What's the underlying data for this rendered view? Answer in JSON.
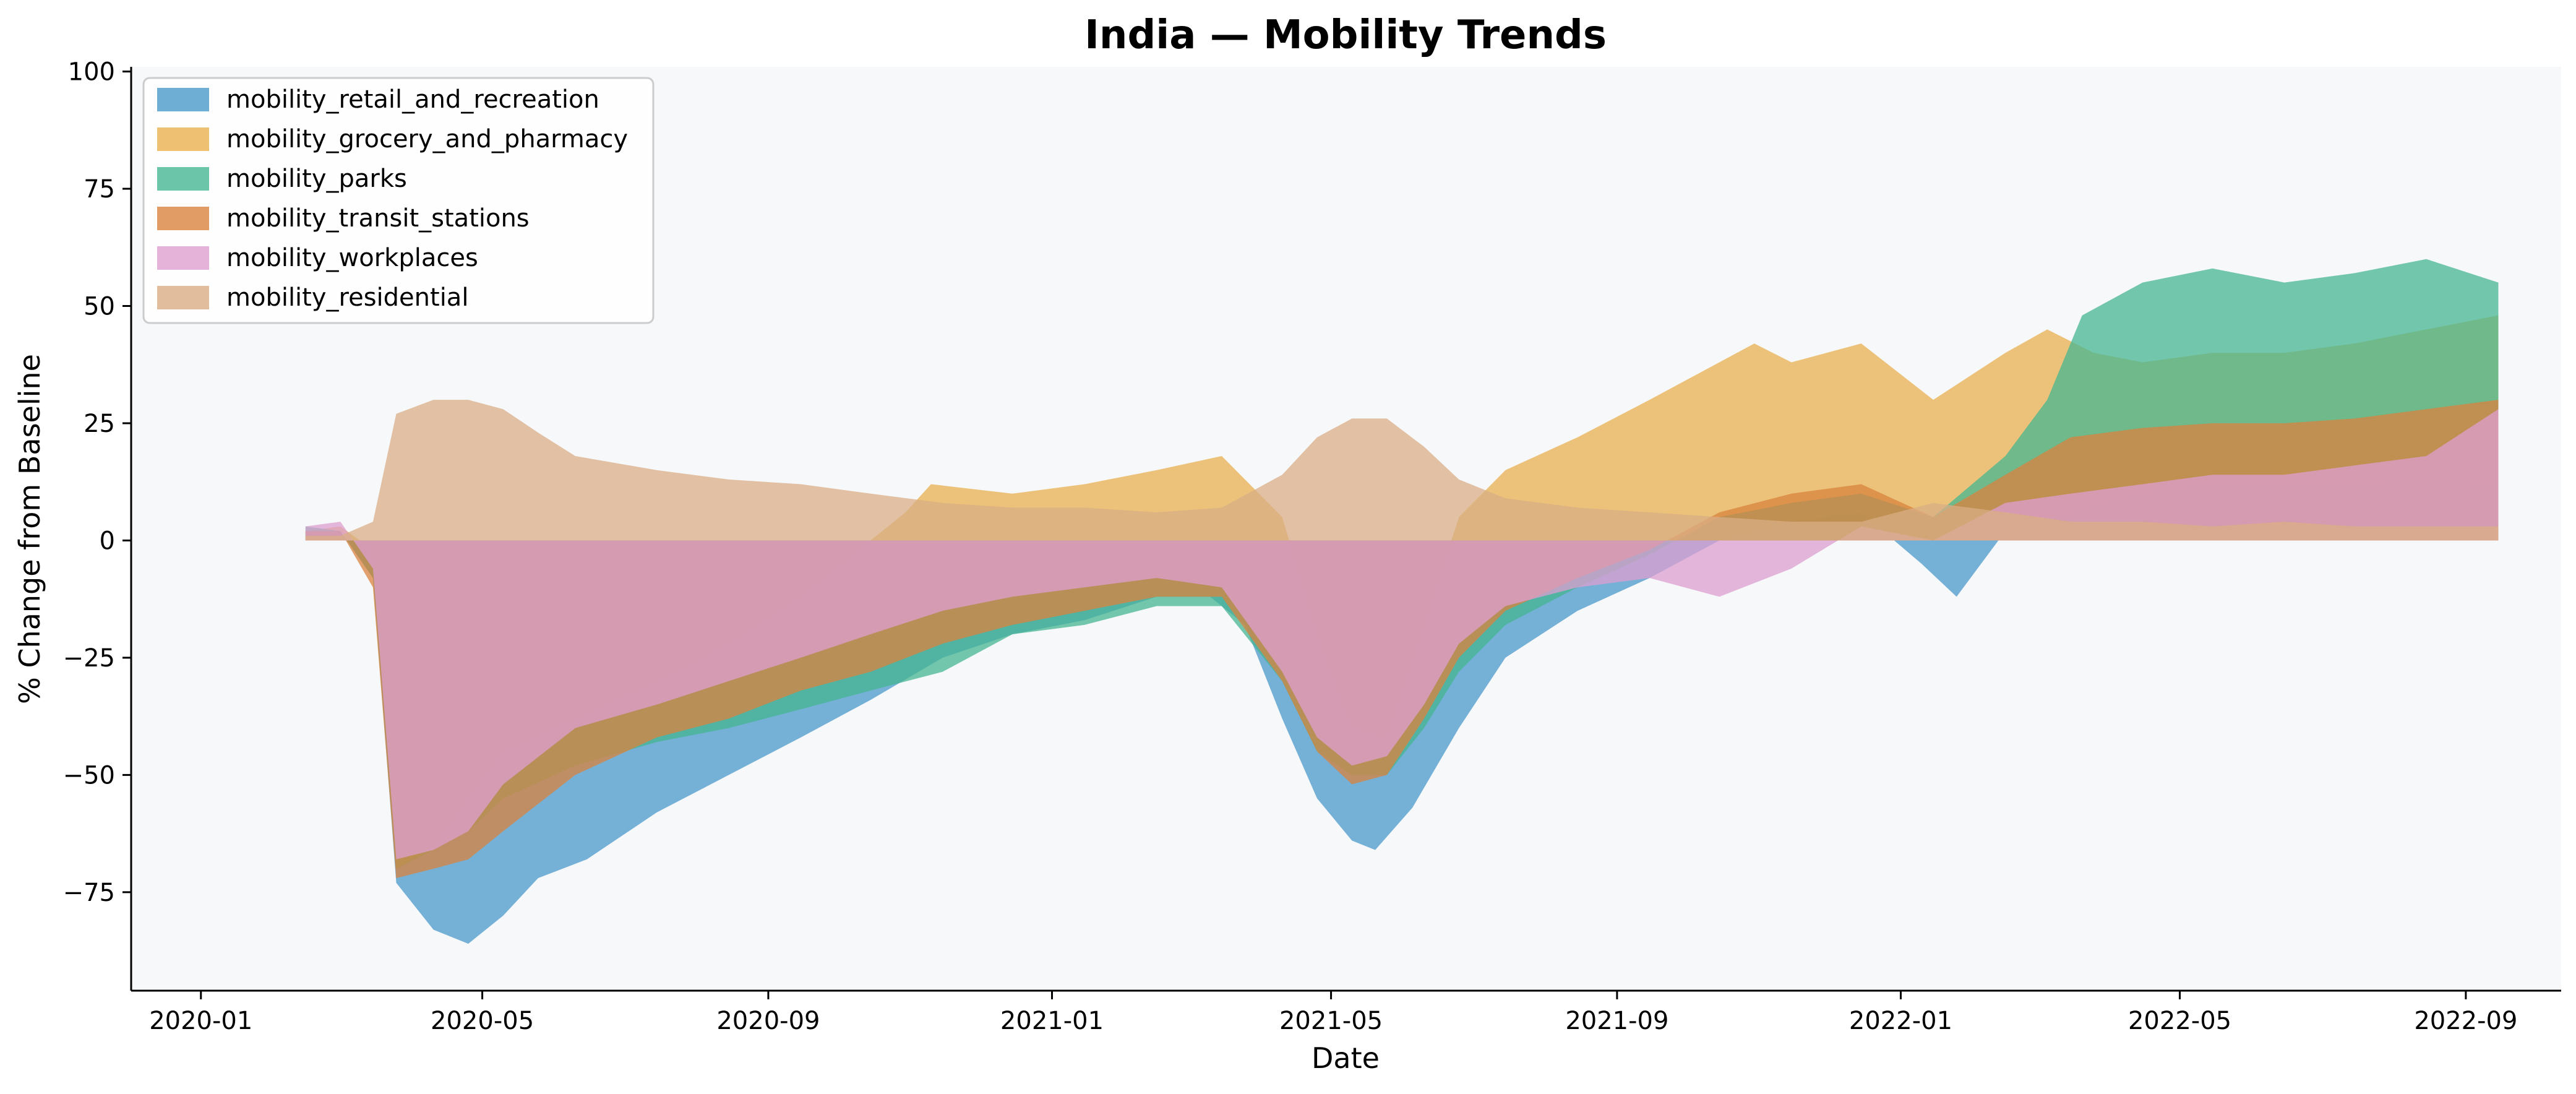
{
  "chart_data": {
    "type": "area",
    "title": "India — Mobility Trends",
    "xlabel": "Date",
    "ylabel": "% Change from Baseline",
    "xlim": [
      "2019-12-02",
      "2022-10-12"
    ],
    "ylim": [
      -96,
      101
    ],
    "x_ticks": [
      "2020-01",
      "2020-05",
      "2020-09",
      "2021-01",
      "2021-05",
      "2021-09",
      "2022-01",
      "2022-05",
      "2022-09"
    ],
    "y_ticks": [
      -75,
      -50,
      -25,
      0,
      25,
      50,
      75,
      100
    ],
    "y_tick_labels": [
      "−75",
      "−50",
      "−25",
      "0",
      "25",
      "50",
      "75",
      "100"
    ],
    "grid": false,
    "legend_position": "top-left",
    "background": "#f7f8fa",
    "series": [
      {
        "name": "mobility_retail_and_recreation",
        "color": "#4a9ac9",
        "points": [
          [
            "2020-02-15",
            2
          ],
          [
            "2020-03-01",
            2
          ],
          [
            "2020-03-15",
            -8
          ],
          [
            "2020-03-25",
            -73
          ],
          [
            "2020-04-10",
            -83
          ],
          [
            "2020-04-25",
            -86
          ],
          [
            "2020-05-10",
            -80
          ],
          [
            "2020-05-25",
            -72
          ],
          [
            "2020-06-15",
            -68
          ],
          [
            "2020-07-15",
            -58
          ],
          [
            "2020-08-15",
            -50
          ],
          [
            "2020-09-15",
            -42
          ],
          [
            "2020-10-15",
            -34
          ],
          [
            "2020-11-15",
            -25
          ],
          [
            "2020-12-15",
            -20
          ],
          [
            "2021-01-15",
            -17
          ],
          [
            "2021-02-15",
            -12
          ],
          [
            "2021-03-10",
            -12
          ],
          [
            "2021-03-25",
            -18
          ],
          [
            "2021-04-10",
            -38
          ],
          [
            "2021-04-25",
            -55
          ],
          [
            "2021-05-10",
            -64
          ],
          [
            "2021-05-20",
            -66
          ],
          [
            "2021-06-05",
            -57
          ],
          [
            "2021-06-25",
            -40
          ],
          [
            "2021-07-15",
            -25
          ],
          [
            "2021-08-15",
            -15
          ],
          [
            "2021-09-15",
            -8
          ],
          [
            "2021-10-15",
            0
          ],
          [
            "2021-11-15",
            4
          ],
          [
            "2021-12-15",
            6
          ],
          [
            "2022-01-10",
            -5
          ],
          [
            "2022-01-25",
            -12
          ],
          [
            "2022-02-15",
            2
          ],
          [
            "2022-03-15",
            6
          ],
          [
            "2022-04-15",
            10
          ],
          [
            "2022-05-15",
            12
          ],
          [
            "2022-06-15",
            12
          ],
          [
            "2022-07-15",
            12
          ],
          [
            "2022-08-15",
            13
          ],
          [
            "2022-09-15",
            12
          ]
        ]
      },
      {
        "name": "mobility_grocery_and_pharmacy",
        "color": "#e8b04f",
        "points": [
          [
            "2020-02-15",
            2
          ],
          [
            "2020-03-01",
            3
          ],
          [
            "2020-03-15",
            -2
          ],
          [
            "2020-03-25",
            -70
          ],
          [
            "2020-04-10",
            -65
          ],
          [
            "2020-04-25",
            -55
          ],
          [
            "2020-05-10",
            -45
          ],
          [
            "2020-06-10",
            -38
          ],
          [
            "2020-07-15",
            -30
          ],
          [
            "2020-08-15",
            -22
          ],
          [
            "2020-09-15",
            -12
          ],
          [
            "2020-10-15",
            0
          ],
          [
            "2020-10-30",
            6
          ],
          [
            "2020-11-10",
            12
          ],
          [
            "2020-12-15",
            10
          ],
          [
            "2021-01-15",
            12
          ],
          [
            "2021-02-15",
            15
          ],
          [
            "2021-03-15",
            18
          ],
          [
            "2021-04-10",
            5
          ],
          [
            "2021-04-25",
            -20
          ],
          [
            "2021-05-10",
            -40
          ],
          [
            "2021-05-25",
            -42
          ],
          [
            "2021-06-10",
            -18
          ],
          [
            "2021-06-25",
            5
          ],
          [
            "2021-07-15",
            15
          ],
          [
            "2021-08-15",
            22
          ],
          [
            "2021-09-15",
            30
          ],
          [
            "2021-10-15",
            38
          ],
          [
            "2021-10-30",
            42
          ],
          [
            "2021-11-15",
            38
          ],
          [
            "2021-12-15",
            42
          ],
          [
            "2022-01-15",
            30
          ],
          [
            "2022-02-15",
            40
          ],
          [
            "2022-03-05",
            45
          ],
          [
            "2022-03-25",
            40
          ],
          [
            "2022-04-15",
            38
          ],
          [
            "2022-05-15",
            40
          ],
          [
            "2022-06-15",
            40
          ],
          [
            "2022-07-15",
            42
          ],
          [
            "2022-08-15",
            45
          ],
          [
            "2022-09-15",
            48
          ]
        ]
      },
      {
        "name": "mobility_parks",
        "color": "#46b692",
        "points": [
          [
            "2020-02-15",
            3
          ],
          [
            "2020-03-01",
            2
          ],
          [
            "2020-03-15",
            -8
          ],
          [
            "2020-03-25",
            -70
          ],
          [
            "2020-04-10",
            -66
          ],
          [
            "2020-04-25",
            -62
          ],
          [
            "2020-05-10",
            -55
          ],
          [
            "2020-06-10",
            -48
          ],
          [
            "2020-07-15",
            -43
          ],
          [
            "2020-08-15",
            -40
          ],
          [
            "2020-09-15",
            -36
          ],
          [
            "2020-10-15",
            -32
          ],
          [
            "2020-11-15",
            -28
          ],
          [
            "2020-12-15",
            -20
          ],
          [
            "2021-01-15",
            -18
          ],
          [
            "2021-02-15",
            -14
          ],
          [
            "2021-03-15",
            -14
          ],
          [
            "2021-04-10",
            -30
          ],
          [
            "2021-04-25",
            -45
          ],
          [
            "2021-05-10",
            -50
          ],
          [
            "2021-05-25",
            -50
          ],
          [
            "2021-06-10",
            -40
          ],
          [
            "2021-06-25",
            -28
          ],
          [
            "2021-07-15",
            -18
          ],
          [
            "2021-08-15",
            -10
          ],
          [
            "2021-09-15",
            -3
          ],
          [
            "2021-10-15",
            5
          ],
          [
            "2021-11-15",
            8
          ],
          [
            "2021-12-15",
            10
          ],
          [
            "2022-01-15",
            5
          ],
          [
            "2022-02-15",
            18
          ],
          [
            "2022-03-05",
            30
          ],
          [
            "2022-03-20",
            48
          ],
          [
            "2022-04-15",
            55
          ],
          [
            "2022-05-15",
            58
          ],
          [
            "2022-06-15",
            55
          ],
          [
            "2022-07-15",
            57
          ],
          [
            "2022-08-15",
            60
          ],
          [
            "2022-09-15",
            55
          ]
        ]
      },
      {
        "name": "mobility_transit_stations",
        "color": "#d9833e",
        "points": [
          [
            "2020-02-15",
            2
          ],
          [
            "2020-03-01",
            2
          ],
          [
            "2020-03-15",
            -10
          ],
          [
            "2020-03-25",
            -72
          ],
          [
            "2020-04-10",
            -70
          ],
          [
            "2020-04-25",
            -68
          ],
          [
            "2020-05-10",
            -62
          ],
          [
            "2020-06-10",
            -50
          ],
          [
            "2020-07-15",
            -42
          ],
          [
            "2020-08-15",
            -38
          ],
          [
            "2020-09-15",
            -32
          ],
          [
            "2020-10-15",
            -28
          ],
          [
            "2020-11-15",
            -22
          ],
          [
            "2020-12-15",
            -18
          ],
          [
            "2021-01-15",
            -15
          ],
          [
            "2021-02-15",
            -12
          ],
          [
            "2021-03-15",
            -12
          ],
          [
            "2021-04-10",
            -30
          ],
          [
            "2021-04-25",
            -45
          ],
          [
            "2021-05-10",
            -52
          ],
          [
            "2021-05-25",
            -50
          ],
          [
            "2021-06-10",
            -38
          ],
          [
            "2021-06-25",
            -25
          ],
          [
            "2021-07-15",
            -15
          ],
          [
            "2021-08-15",
            -8
          ],
          [
            "2021-09-15",
            -2
          ],
          [
            "2021-10-15",
            6
          ],
          [
            "2021-11-15",
            10
          ],
          [
            "2021-12-15",
            12
          ],
          [
            "2022-01-15",
            5
          ],
          [
            "2022-02-15",
            14
          ],
          [
            "2022-03-15",
            22
          ],
          [
            "2022-04-15",
            24
          ],
          [
            "2022-05-15",
            25
          ],
          [
            "2022-06-15",
            25
          ],
          [
            "2022-07-15",
            26
          ],
          [
            "2022-08-15",
            28
          ],
          [
            "2022-09-15",
            30
          ]
        ]
      },
      {
        "name": "mobility_workplaces",
        "color": "#de9fd0",
        "points": [
          [
            "2020-02-15",
            3
          ],
          [
            "2020-03-01",
            4
          ],
          [
            "2020-03-15",
            -6
          ],
          [
            "2020-03-25",
            -68
          ],
          [
            "2020-04-10",
            -66
          ],
          [
            "2020-04-25",
            -62
          ],
          [
            "2020-05-10",
            -52
          ],
          [
            "2020-06-10",
            -40
          ],
          [
            "2020-07-15",
            -35
          ],
          [
            "2020-08-15",
            -30
          ],
          [
            "2020-09-15",
            -25
          ],
          [
            "2020-10-15",
            -20
          ],
          [
            "2020-11-15",
            -15
          ],
          [
            "2020-12-15",
            -12
          ],
          [
            "2021-01-15",
            -10
          ],
          [
            "2021-02-15",
            -8
          ],
          [
            "2021-03-15",
            -10
          ],
          [
            "2021-04-10",
            -28
          ],
          [
            "2021-04-25",
            -42
          ],
          [
            "2021-05-10",
            -48
          ],
          [
            "2021-05-25",
            -46
          ],
          [
            "2021-06-10",
            -35
          ],
          [
            "2021-06-25",
            -22
          ],
          [
            "2021-07-15",
            -14
          ],
          [
            "2021-08-15",
            -10
          ],
          [
            "2021-09-15",
            -8
          ],
          [
            "2021-10-15",
            -12
          ],
          [
            "2021-11-15",
            -6
          ],
          [
            "2021-12-15",
            3
          ],
          [
            "2022-01-15",
            0
          ],
          [
            "2022-02-15",
            8
          ],
          [
            "2022-03-15",
            10
          ],
          [
            "2022-04-15",
            12
          ],
          [
            "2022-05-15",
            14
          ],
          [
            "2022-06-15",
            14
          ],
          [
            "2022-07-15",
            16
          ],
          [
            "2022-08-15",
            18
          ],
          [
            "2022-09-15",
            28
          ]
        ]
      },
      {
        "name": "mobility_residential",
        "color": "#d9ad86",
        "points": [
          [
            "2020-02-15",
            1
          ],
          [
            "2020-03-01",
            1
          ],
          [
            "2020-03-15",
            4
          ],
          [
            "2020-03-25",
            27
          ],
          [
            "2020-04-10",
            30
          ],
          [
            "2020-04-25",
            30
          ],
          [
            "2020-05-10",
            28
          ],
          [
            "2020-05-25",
            23
          ],
          [
            "2020-06-10",
            18
          ],
          [
            "2020-07-15",
            15
          ],
          [
            "2020-08-15",
            13
          ],
          [
            "2020-09-15",
            12
          ],
          [
            "2020-10-15",
            10
          ],
          [
            "2020-11-15",
            8
          ],
          [
            "2020-12-15",
            7
          ],
          [
            "2021-01-15",
            7
          ],
          [
            "2021-02-15",
            6
          ],
          [
            "2021-03-15",
            7
          ],
          [
            "2021-04-10",
            14
          ],
          [
            "2021-04-25",
            22
          ],
          [
            "2021-05-10",
            26
          ],
          [
            "2021-05-25",
            26
          ],
          [
            "2021-06-10",
            20
          ],
          [
            "2021-06-25",
            13
          ],
          [
            "2021-07-15",
            9
          ],
          [
            "2021-08-15",
            7
          ],
          [
            "2021-09-15",
            6
          ],
          [
            "2021-10-15",
            5
          ],
          [
            "2021-11-15",
            4
          ],
          [
            "2021-12-15",
            4
          ],
          [
            "2022-01-15",
            8
          ],
          [
            "2022-02-15",
            6
          ],
          [
            "2022-03-15",
            4
          ],
          [
            "2022-04-15",
            4
          ],
          [
            "2022-05-15",
            3
          ],
          [
            "2022-06-15",
            4
          ],
          [
            "2022-07-15",
            3
          ],
          [
            "2022-08-15",
            3
          ],
          [
            "2022-09-15",
            3
          ]
        ]
      }
    ]
  }
}
